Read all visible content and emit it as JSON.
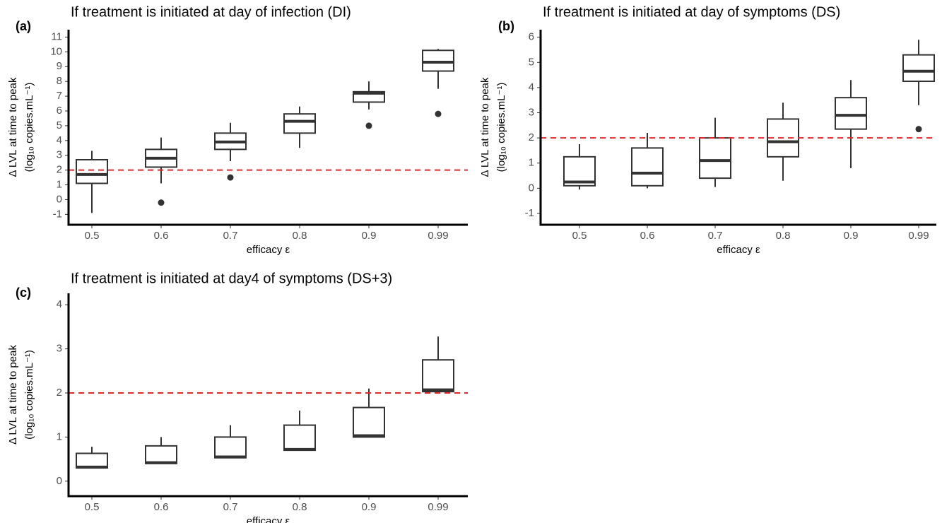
{
  "chart_data": [
    {
      "type": "box",
      "panel": "(a)",
      "title": "If treatment is initiated at day of infection (DI)",
      "xlabel": "efficacy ε",
      "ylabel": [
        "Δ LVL at time to peak",
        "(log₁₀ copies.mL⁻¹)"
      ],
      "categories": [
        "0.5",
        "0.6",
        "0.7",
        "0.8",
        "0.9",
        "0.99"
      ],
      "boxes": [
        {
          "whislo": -0.9,
          "q1": 1.1,
          "med": 1.7,
          "q3": 2.7,
          "whishi": 3.3
        },
        {
          "whislo": 1.1,
          "q1": 2.2,
          "med": 2.8,
          "q3": 3.4,
          "whishi": 4.2,
          "fliers": [
            -0.2
          ]
        },
        {
          "whislo": 2.6,
          "q1": 3.4,
          "med": 3.9,
          "q3": 4.5,
          "whishi": 5.2,
          "fliers": [
            1.5
          ]
        },
        {
          "whislo": 3.5,
          "q1": 4.5,
          "med": 5.3,
          "q3": 5.8,
          "whishi": 6.3
        },
        {
          "whislo": 6.1,
          "q1": 6.6,
          "med": 7.2,
          "q3": 7.3,
          "whishi": 8.0,
          "fliers": [
            5.0
          ]
        },
        {
          "whislo": 7.5,
          "q1": 8.7,
          "med": 9.3,
          "q3": 10.1,
          "whishi": 10.2,
          "fliers": [
            5.8
          ]
        }
      ],
      "ylim": [
        -1.7,
        11.5
      ],
      "yticks": [
        -1,
        0,
        1,
        2,
        3,
        4,
        5,
        6,
        7,
        8,
        9,
        10,
        11
      ],
      "hline": 2,
      "hline_color": "#e8262a",
      "box_color": "#333333"
    },
    {
      "type": "box",
      "panel": "(b)",
      "title": "If treatment is initiated at day of symptoms (DS)",
      "xlabel": "efficacy ε",
      "ylabel": [
        "Δ LVL at time to peak",
        "(log₁₀ copies.mL⁻¹)"
      ],
      "categories": [
        "0.5",
        "0.6",
        "0.7",
        "0.8",
        "0.9",
        "0.99"
      ],
      "boxes": [
        {
          "whislo": -0.05,
          "q1": 0.1,
          "med": 0.25,
          "q3": 1.25,
          "whishi": 1.75
        },
        {
          "whislo": 0.0,
          "q1": 0.1,
          "med": 0.6,
          "q3": 1.6,
          "whishi": 2.2
        },
        {
          "whislo": 0.05,
          "q1": 0.4,
          "med": 1.1,
          "q3": 2.0,
          "whishi": 2.8
        },
        {
          "whislo": 0.3,
          "q1": 1.25,
          "med": 1.85,
          "q3": 2.75,
          "whishi": 3.4
        },
        {
          "whislo": 0.8,
          "q1": 2.35,
          "med": 2.9,
          "q3": 3.6,
          "whishi": 4.3
        },
        {
          "whislo": 3.3,
          "q1": 4.25,
          "med": 4.65,
          "q3": 5.3,
          "whishi": 5.9,
          "fliers": [
            2.35
          ]
        }
      ],
      "ylim": [
        -1.45,
        6.3
      ],
      "yticks": [
        -1,
        0,
        1,
        2,
        3,
        4,
        5,
        6
      ],
      "hline": 2,
      "hline_color": "#e8262a",
      "box_color": "#333333"
    },
    {
      "type": "box",
      "panel": "(c)",
      "title": "If treatment is initiated at day4 of symptoms (DS+3)",
      "xlabel": "efficacy ε",
      "ylabel": [
        "Δ LVL at time to peak",
        "(log₁₀ copies.mL⁻¹)"
      ],
      "categories": [
        "0.5",
        "0.6",
        "0.7",
        "0.8",
        "0.9",
        "0.99"
      ],
      "boxes": [
        {
          "whislo": 0.3,
          "q1": 0.3,
          "med": 0.32,
          "q3": 0.63,
          "whishi": 0.78
        },
        {
          "whislo": 0.4,
          "q1": 0.4,
          "med": 0.42,
          "q3": 0.8,
          "whishi": 1.0
        },
        {
          "whislo": 0.53,
          "q1": 0.53,
          "med": 0.55,
          "q3": 1.0,
          "whishi": 1.27
        },
        {
          "whislo": 0.7,
          "q1": 0.7,
          "med": 0.72,
          "q3": 1.27,
          "whishi": 1.6
        },
        {
          "whislo": 1.0,
          "q1": 1.0,
          "med": 1.03,
          "q3": 1.67,
          "whishi": 2.1
        },
        {
          "whislo": 2.03,
          "q1": 2.03,
          "med": 2.07,
          "q3": 2.75,
          "whishi": 3.28
        }
      ],
      "ylim": [
        -0.34,
        4.26
      ],
      "yticks": [
        0,
        1,
        2,
        3,
        4
      ],
      "hline": 2,
      "hline_color": "#e8262a",
      "box_color": "#333333"
    }
  ]
}
